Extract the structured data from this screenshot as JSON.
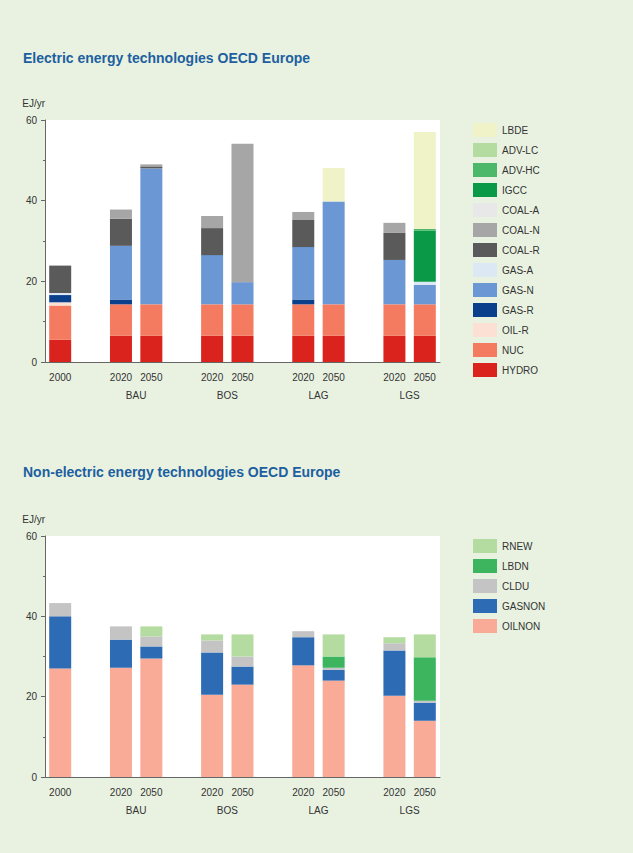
{
  "chart_data": [
    {
      "type": "bar",
      "title": "Electric energy technologies OECD Europe",
      "ylabel": "EJ/yr",
      "categories": [
        "2000",
        null,
        "2020",
        "2050",
        null,
        "2020",
        "2050",
        null,
        "2020",
        "2050",
        null,
        "2020",
        "2050"
      ],
      "category_groups": [
        null,
        null,
        "BAU",
        "BAU",
        null,
        "BOS",
        "BOS",
        null,
        "LAG",
        "LAG",
        null,
        "LGS",
        "LGS"
      ],
      "stacked": true,
      "grid": false,
      "legend": "right",
      "ylim": [
        0,
        60
      ],
      "yticks": [
        0,
        20,
        40,
        60
      ],
      "series": [
        {
          "name": "HYDRO",
          "color": "#d9231c",
          "values": [
            5.5,
            null,
            6.5,
            6.5,
            null,
            6.5,
            6.5,
            null,
            6.5,
            6.5,
            null,
            6.5,
            6.5
          ]
        },
        {
          "name": "NUC",
          "color": "#f47a60",
          "values": [
            8.5,
            null,
            7.8,
            7.8,
            null,
            7.8,
            7.8,
            null,
            7.8,
            7.8,
            null,
            7.8,
            7.8
          ]
        },
        {
          "name": "OIL-R",
          "color": "#fde0d4",
          "values": [
            0.8,
            null,
            null,
            null,
            null,
            null,
            null,
            null,
            null,
            null,
            null,
            null,
            null
          ]
        },
        {
          "name": "GAS-R",
          "color": "#0a3f8c",
          "values": [
            1.8,
            null,
            1.2,
            null,
            null,
            null,
            null,
            null,
            1.2,
            null,
            null,
            null,
            null
          ]
        },
        {
          "name": "GAS-N",
          "color": "#6b97d4",
          "values": [
            null,
            null,
            13.3,
            33.7,
            null,
            12.2,
            5.5,
            null,
            13,
            25.5,
            null,
            11,
            4.8
          ]
        },
        {
          "name": "GAS-A",
          "color": "#dde8f5",
          "values": [
            0.5,
            null,
            null,
            null,
            null,
            null,
            null,
            null,
            null,
            null,
            null,
            null,
            0.8
          ]
        },
        {
          "name": "COAL-R",
          "color": "#5a5a5a",
          "values": [
            6.8,
            null,
            6.7,
            0.5,
            null,
            6.7,
            null,
            null,
            6.7,
            null,
            null,
            6.7,
            null
          ]
        },
        {
          "name": "COAL-N",
          "color": "#a6a6a6",
          "values": [
            null,
            null,
            2.3,
            0.5,
            null,
            3,
            34.3,
            null,
            2,
            null,
            null,
            2.5,
            null
          ]
        },
        {
          "name": "COAL-A",
          "color": "#e8e8e8",
          "values": [
            null,
            null,
            null,
            null,
            null,
            null,
            null,
            null,
            null,
            null,
            null,
            null,
            null
          ]
        },
        {
          "name": "IGCC",
          "color": "#0a9a47",
          "values": [
            null,
            null,
            null,
            null,
            null,
            null,
            null,
            null,
            null,
            null,
            null,
            null,
            12.7
          ]
        },
        {
          "name": "ADV-HC",
          "color": "#4db86a",
          "values": [
            null,
            null,
            null,
            null,
            null,
            null,
            null,
            null,
            null,
            null,
            null,
            null,
            0.4
          ]
        },
        {
          "name": "ADV-LC",
          "color": "#b5dca0",
          "values": [
            null,
            null,
            null,
            null,
            null,
            null,
            null,
            null,
            null,
            null,
            null,
            null,
            null
          ]
        },
        {
          "name": "LBDE",
          "color": "#f0f2c8",
          "values": [
            null,
            null,
            null,
            null,
            null,
            null,
            null,
            null,
            null,
            8.3,
            null,
            null,
            24
          ]
        }
      ]
    },
    {
      "type": "bar",
      "title": "Non-electric energy technologies OECD Europe",
      "ylabel": "EJ/yr",
      "categories": [
        "2000",
        null,
        "2020",
        "2050",
        null,
        "2020",
        "2050",
        null,
        "2020",
        "2050",
        null,
        "2020",
        "2050"
      ],
      "category_groups": [
        null,
        null,
        "BAU",
        "BAU",
        null,
        "BOS",
        "BOS",
        null,
        "LAG",
        "LAG",
        null,
        "LGS",
        "LGS"
      ],
      "stacked": true,
      "grid": false,
      "legend": "right",
      "ylim": [
        0,
        60
      ],
      "yticks": [
        0,
        20,
        40,
        60
      ],
      "series": [
        {
          "name": "OILNON",
          "color": "#f9ab98",
          "values": [
            27,
            null,
            27.2,
            29.5,
            null,
            20.5,
            23,
            null,
            27.8,
            24,
            null,
            20.2,
            14
          ]
        },
        {
          "name": "GASNON",
          "color": "#2d6bb5",
          "values": [
            13,
            null,
            7,
            3,
            null,
            10.5,
            4.5,
            null,
            7,
            2.7,
            null,
            11.3,
            4.5
          ]
        },
        {
          "name": "CLDU",
          "color": "#c4c4c4",
          "values": [
            3.3,
            null,
            3.3,
            2.5,
            null,
            3,
            2.5,
            null,
            1.5,
            0.5,
            null,
            1.8,
            0.5
          ]
        },
        {
          "name": "LBDN",
          "color": "#3cb55e",
          "values": [
            null,
            null,
            null,
            null,
            null,
            null,
            null,
            null,
            null,
            2.8,
            null,
            null,
            10.8
          ]
        },
        {
          "name": "RNEW",
          "color": "#b5dca0",
          "values": [
            null,
            null,
            null,
            2.5,
            null,
            1.5,
            5.5,
            null,
            null,
            5.5,
            null,
            1.5,
            5.7
          ]
        }
      ]
    }
  ]
}
